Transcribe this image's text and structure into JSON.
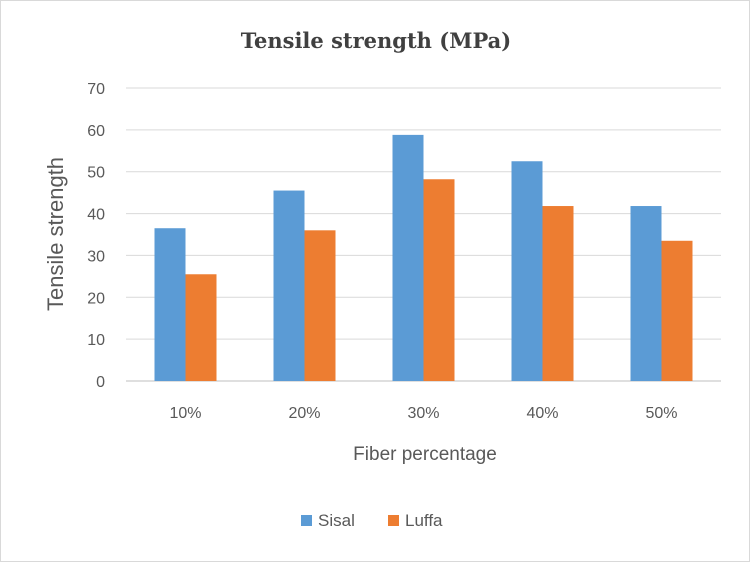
{
  "chart_data": {
    "type": "bar",
    "title": "Tensile strength (MPa)",
    "xlabel": "Fiber percentage",
    "ylabel": "Tensile strength",
    "categories": [
      "10%",
      "20%",
      "30%",
      "40%",
      "50%"
    ],
    "series": [
      {
        "name": "Sisal",
        "color": "#5b9bd5",
        "values": [
          36.5,
          45.5,
          58.8,
          52.5,
          41.8
        ]
      },
      {
        "name": "Luffa",
        "color": "#ed7d31",
        "values": [
          25.5,
          36,
          48.2,
          41.8,
          33.5
        ]
      }
    ],
    "ylim": [
      0,
      70
    ],
    "yticks": [
      "0",
      "10",
      "20",
      "30",
      "40",
      "50",
      "60",
      "70"
    ],
    "grid": true,
    "legend_position": "bottom"
  }
}
